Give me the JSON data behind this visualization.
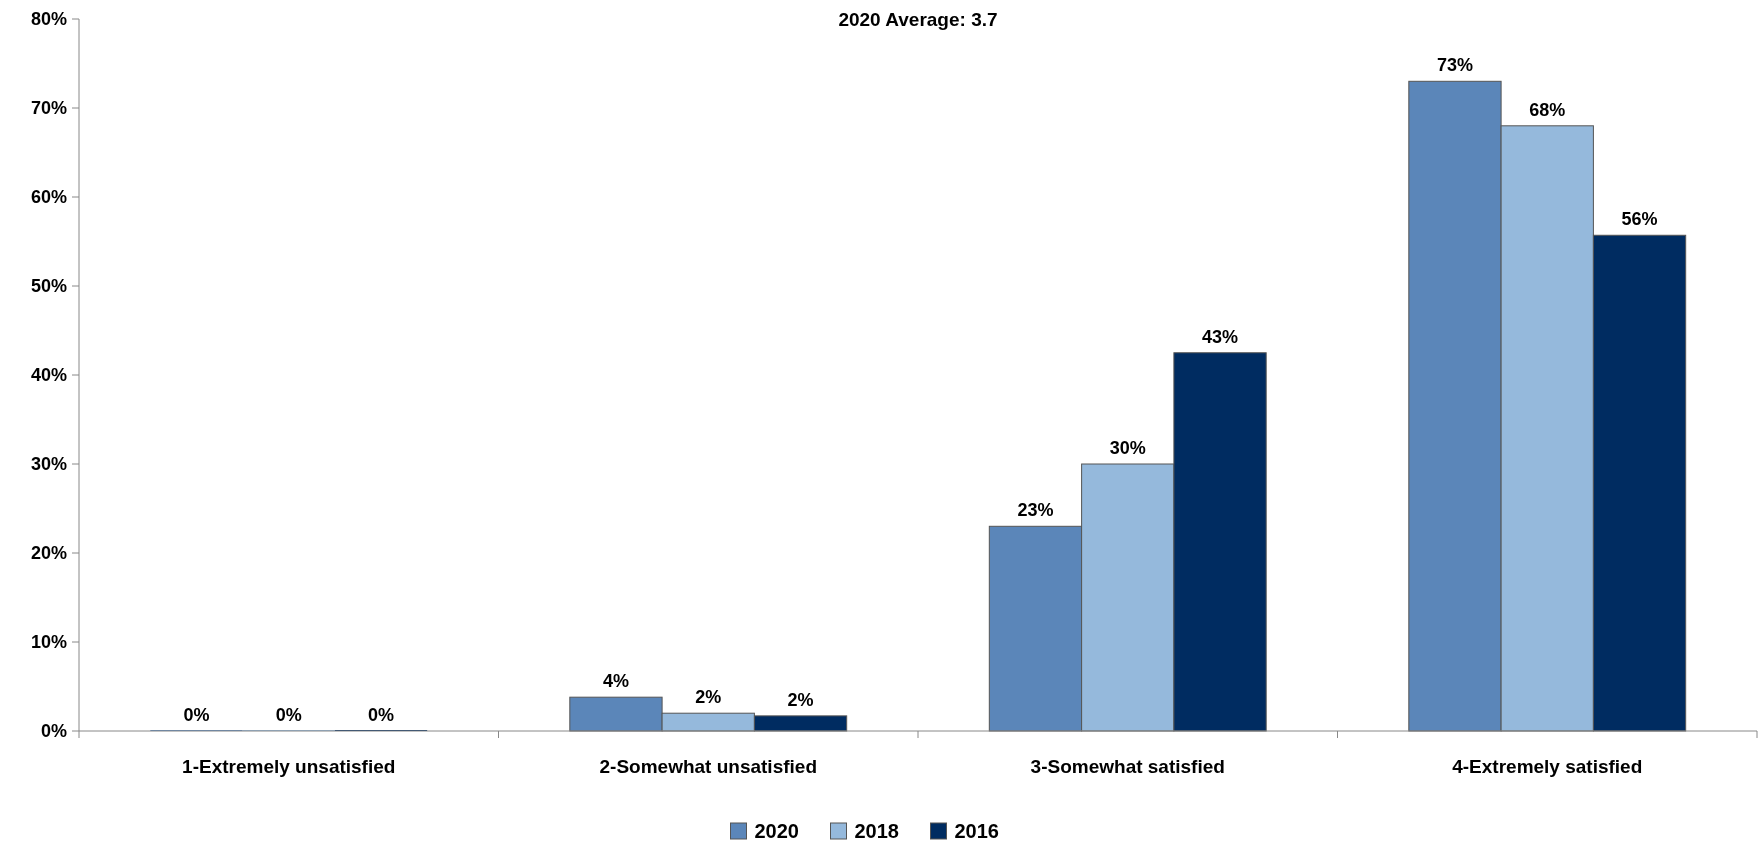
{
  "chart_data": {
    "type": "bar",
    "title": "2020 Average: 3.7",
    "categories": [
      "1-Extremely unsatisfied",
      "2-Somewhat unsatisfied",
      "3-Somewhat satisfied",
      "4-Extremely satisfied"
    ],
    "series": [
      {
        "name": "2020",
        "color": "#5b86b9",
        "values": [
          0,
          3.8,
          23,
          73
        ],
        "value_labels": [
          "0%",
          "4%",
          "23%",
          "73%"
        ]
      },
      {
        "name": "2018",
        "color": "#95b9dc",
        "values": [
          0,
          2,
          30,
          68
        ],
        "value_labels": [
          "0%",
          "2%",
          "30%",
          "68%"
        ]
      },
      {
        "name": "2016",
        "color": "#002c61",
        "values": [
          0,
          1.7,
          42.5,
          55.7
        ],
        "value_labels": [
          "0%",
          "2%",
          "43%",
          "56%"
        ]
      }
    ],
    "ylim": [
      0,
      80
    ],
    "yticks": [
      {
        "value": 0,
        "label": "0%"
      },
      {
        "value": 10,
        "label": "10%"
      },
      {
        "value": 20,
        "label": "20%"
      },
      {
        "value": 30,
        "label": "30%"
      },
      {
        "value": 40,
        "label": "40%"
      },
      {
        "value": 50,
        "label": "50%"
      },
      {
        "value": 60,
        "label": "60%"
      },
      {
        "value": 70,
        "label": "70%"
      },
      {
        "value": 80,
        "label": "80%"
      }
    ],
    "legend": "bottom",
    "grid": false
  }
}
